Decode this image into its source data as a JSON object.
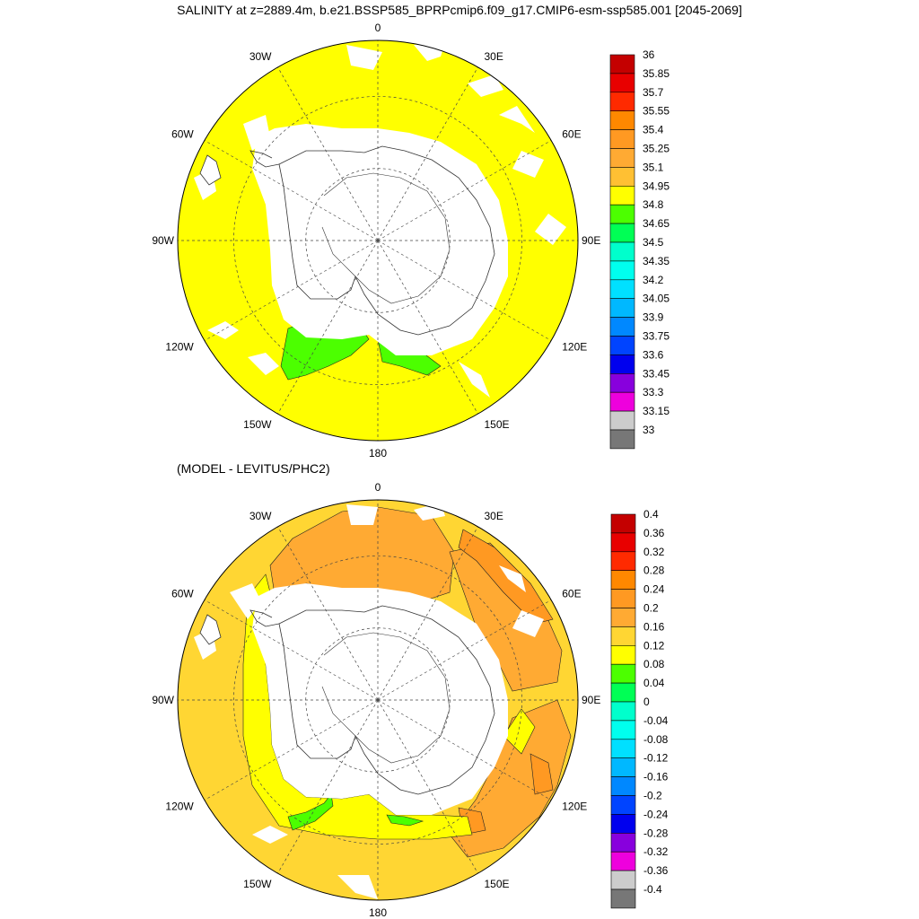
{
  "title": "SALINITY at z=2889.4m, b.e21.BSSP585_BPRPcmip6.f09_g17.CMIP6-esm-ssp585.001 [2045-2069]",
  "subtitle": "(MODEL - LEVITUS/PHC2)",
  "longitude_labels": [
    "0",
    "30E",
    "60E",
    "90E",
    "120E",
    "150E",
    "180",
    "150W",
    "120W",
    "90W",
    "60W",
    "30W"
  ],
  "colors": {
    "land": "#ffffff",
    "coast": "#333333",
    "grid": "#444444",
    "top_field": "#ffff00",
    "top_anomaly_low": "#4cff00",
    "diff_field": "#ffd633",
    "diff_higher": "#ffaa33",
    "diff_highest": "#ff9922",
    "diff_low": "#ffff00",
    "diff_lowest": "#4cff00"
  },
  "maps": [
    {
      "name": "salinity",
      "colorbar": {
        "labels": [
          "36",
          "35.85",
          "35.7",
          "35.55",
          "35.4",
          "35.25",
          "35.1",
          "34.95",
          "34.8",
          "34.65",
          "34.5",
          "34.35",
          "34.2",
          "34.05",
          "33.9",
          "33.75",
          "33.6",
          "33.45",
          "33.3",
          "33.15",
          "33"
        ],
        "colors": [
          "#c40000",
          "#e80000",
          "#ff2a00",
          "#ff8800",
          "#ff9922",
          "#ffaa33",
          "#ffc033",
          "#ffff00",
          "#4cff00",
          "#00ff55",
          "#00ffcc",
          "#00ffee",
          "#00e0ff",
          "#00b8ff",
          "#0088ff",
          "#0044ff",
          "#0000ee",
          "#8800dd",
          "#ee00dd",
          "#cccccc",
          "#777777"
        ]
      }
    },
    {
      "name": "difference",
      "colorbar": {
        "labels": [
          "0.4",
          "0.36",
          "0.32",
          "0.28",
          "0.24",
          "0.2",
          "0.16",
          "0.12",
          "0.08",
          "0.04",
          "0",
          "-0.04",
          "-0.08",
          "-0.12",
          "-0.16",
          "-0.2",
          "-0.24",
          "-0.28",
          "-0.32",
          "-0.36",
          "-0.4"
        ],
        "colors": [
          "#c40000",
          "#e80000",
          "#ff2a00",
          "#ff8800",
          "#ff9922",
          "#ffaa33",
          "#ffd633",
          "#ffff00",
          "#4cff00",
          "#00ff55",
          "#00ffcc",
          "#00ffee",
          "#00e0ff",
          "#00b8ff",
          "#0088ff",
          "#0044ff",
          "#0000ee",
          "#8800dd",
          "#ee00dd",
          "#cccccc",
          "#777777"
        ]
      }
    }
  ]
}
